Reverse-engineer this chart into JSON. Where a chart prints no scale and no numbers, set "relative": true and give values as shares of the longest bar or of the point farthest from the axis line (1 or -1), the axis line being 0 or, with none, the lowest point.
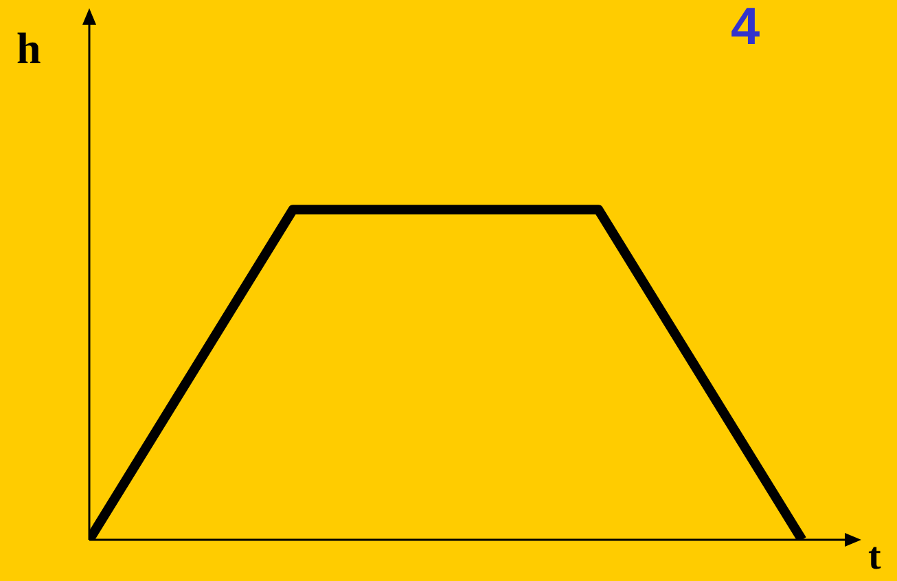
{
  "chart_data": {
    "type": "line",
    "relative": true,
    "ylabel": "h",
    "xlabel": "t",
    "annotations": [
      "4"
    ],
    "categories": [
      null,
      null,
      null,
      null,
      null,
      null,
      null,
      null
    ],
    "marker": "none",
    "line_style": "solid",
    "series": [
      {
        "color": "#000000",
        "values": [
          0,
          0.5,
          1,
          1,
          1,
          1,
          0.5,
          0
        ]
      }
    ]
  }
}
